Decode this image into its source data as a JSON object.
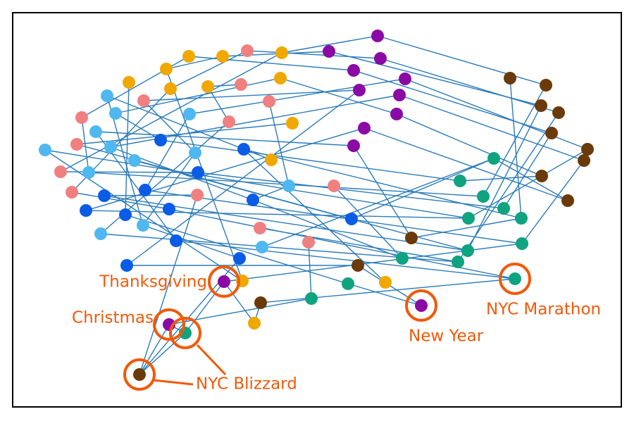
{
  "annotations": [
    "Thanksgiving",
    "Christmas",
    "NYC Blizzard",
    "New Year",
    "NYC Marathon"
  ]
}
